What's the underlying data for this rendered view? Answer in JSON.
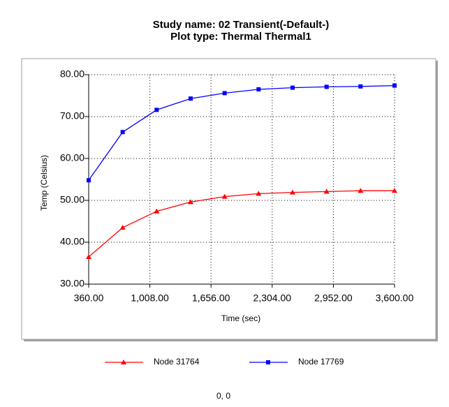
{
  "chart_data": {
    "type": "line",
    "title": [
      "Study name: 02 Transient(-Default-)",
      "Plot type: Thermal Thermal1"
    ],
    "x_label": "Time (sec)",
    "y_label": "Temp (Celsius)",
    "x": [
      360,
      720,
      1080,
      1440,
      1800,
      2160,
      2520,
      2880,
      3240,
      3600
    ],
    "series": [
      {
        "name": "Node 31764",
        "color": "#ff0000",
        "marker": "triangle",
        "values": [
          36.5,
          43.5,
          47.4,
          49.6,
          50.9,
          51.6,
          51.9,
          52.1,
          52.3,
          52.3
        ]
      },
      {
        "name": "Node 17769",
        "color": "#0000ff",
        "marker": "square",
        "values": [
          54.8,
          66.3,
          71.6,
          74.3,
          75.6,
          76.5,
          76.9,
          77.1,
          77.2,
          77.4
        ]
      }
    ],
    "xlim": [
      360,
      3600
    ],
    "xticks": [
      {
        "value": 360,
        "label": "360.00"
      },
      {
        "value": 1008,
        "label": "1,008.00"
      },
      {
        "value": 1656,
        "label": "1,656.00"
      },
      {
        "value": 2304,
        "label": "2,304.00"
      },
      {
        "value": 2952,
        "label": "2,952.00"
      },
      {
        "value": 3600,
        "label": "3,600.00"
      }
    ],
    "ylim": [
      30,
      80
    ],
    "yticks": [
      {
        "value": 30,
        "label": "30.00"
      },
      {
        "value": 40,
        "label": "40.00"
      },
      {
        "value": 50,
        "label": "50.00"
      },
      {
        "value": 60,
        "label": "60.00"
      },
      {
        "value": 70,
        "label": "70.00"
      },
      {
        "value": 80,
        "label": "80.00"
      }
    ],
    "grid": true
  },
  "status": "0, 0"
}
